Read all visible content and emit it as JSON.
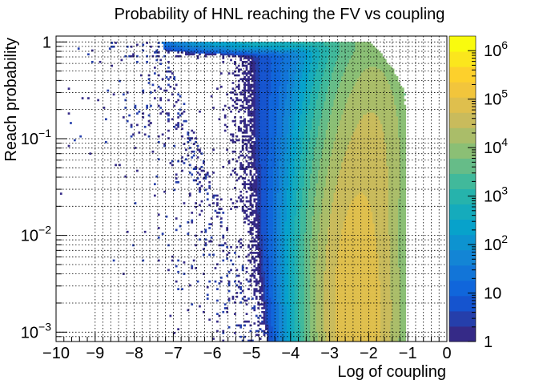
{
  "chart_data": {
    "type": "heatmap",
    "title": "Probability of HNL reaching the FV vs coupling",
    "xlabel": "Log of coupling",
    "ylabel": "Reach probability",
    "xlim": [
      -10,
      0
    ],
    "ylim": [
      0.0008,
      1.15
    ],
    "yscale": "log",
    "zscale": "log",
    "zlim": [
      1,
      2000000
    ],
    "grid": true,
    "colormap": "ROOT kBird",
    "colors": [
      "#352a87",
      "#0f5cdd",
      "#1481d6",
      "#06a4ca",
      "#2eb7a4",
      "#87bf77",
      "#d1bb59",
      "#fec832",
      "#f9fb0e"
    ],
    "x_ticks": [
      -10,
      -9,
      -8,
      -7,
      -6,
      -5,
      -4,
      -3,
      -2,
      -1,
      0
    ],
    "x_tick_labels": [
      "−10",
      "−9",
      "−8",
      "−7",
      "−6",
      "−5",
      "−4",
      "−3",
      "−2",
      "−1",
      "0"
    ],
    "y_ticks": [
      {
        "base": "10",
        "exp": "−3",
        "value": 0.001
      },
      {
        "base": "10",
        "exp": "−2",
        "value": 0.01
      },
      {
        "base": "10",
        "exp": "−1",
        "value": 0.1
      },
      {
        "base": "1",
        "exp": "",
        "value": 1
      }
    ],
    "z_ticks": [
      {
        "base": "1",
        "exp": "",
        "value": 1
      },
      {
        "base": "10",
        "exp": "",
        "value": 10
      },
      {
        "base": "10",
        "exp": "2",
        "value": 100
      },
      {
        "base": "10",
        "exp": "3",
        "value": 1000
      },
      {
        "base": "10",
        "exp": "4",
        "value": 10000
      },
      {
        "base": "10",
        "exp": "5",
        "value": 100000
      },
      {
        "base": "10",
        "exp": "6",
        "value": 1000000
      }
    ],
    "distribution": {
      "comment_free": true,
      "x_bins": 200,
      "y_bins": 160,
      "upper_edge": {
        "x_at_half_probability": -1.62,
        "width": 0.2
      },
      "lower_cutoff_x": -1.05,
      "sparse_onset_x": [
        -7.3,
        -4.6
      ],
      "peak": {
        "x": -2.3,
        "y": 0.0015,
        "count": 100000
      },
      "secondary_peak": {
        "x": -1.8,
        "y": 0.1,
        "count": 20000
      }
    }
  }
}
